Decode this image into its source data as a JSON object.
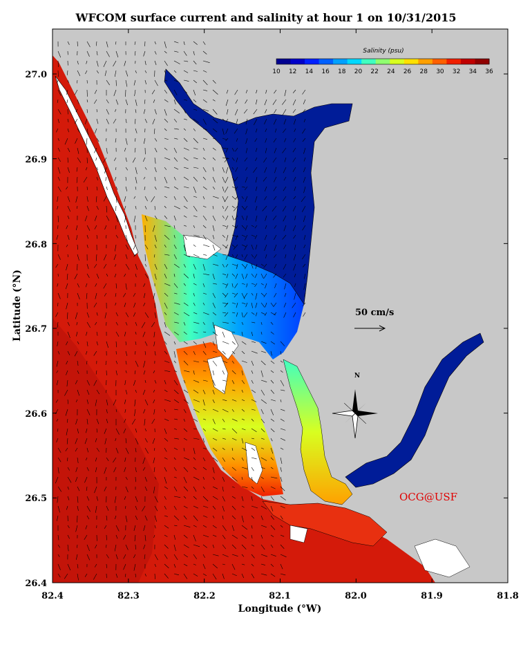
{
  "title": "WFCOM surface current and salinity at hour 1 on 10/31/2015",
  "axes": {
    "xlabel": "Longitude (°W)",
    "ylabel": "Latitude (°N)",
    "x_ticks": [
      "82.4",
      "82.3",
      "82.2",
      "82.1",
      "82.0",
      "81.9",
      "81.8"
    ],
    "y_ticks": [
      "27.0",
      "26.9",
      "26.8",
      "26.7",
      "26.6",
      "26.5",
      "26.4"
    ]
  },
  "colorbar": {
    "title": "Salinity (psu)",
    "ticks": [
      "10",
      "12",
      "14",
      "16",
      "18",
      "20",
      "22",
      "24",
      "26",
      "28",
      "30",
      "32",
      "34",
      "36"
    ],
    "colors": [
      "#00008f",
      "#0000c8",
      "#0020ff",
      "#0060ff",
      "#00a0ff",
      "#00d8ff",
      "#40ffc0",
      "#90ff70",
      "#d8ff20",
      "#ffe000",
      "#ffa000",
      "#ff6000",
      "#f02000",
      "#c00000",
      "#8f0000"
    ]
  },
  "scale_label": "50 cm/s",
  "north_label": "N",
  "credit": "OCG@USF",
  "colors": {
    "land": "#c8c8c8",
    "gulf": "#d41a0a",
    "upper_river": "#001c98"
  }
}
